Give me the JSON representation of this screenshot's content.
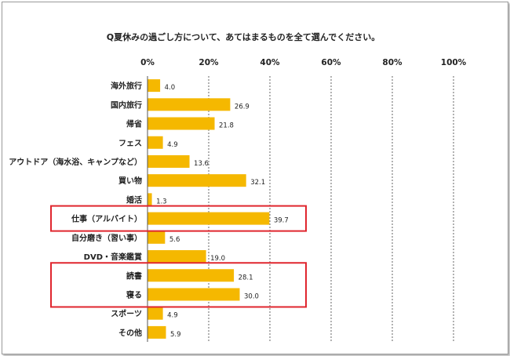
{
  "chart_data": {
    "type": "bar",
    "orientation": "horizontal",
    "title": "Q夏休みの過ごし方について、あてはまるものを全て選んでください。",
    "categories": [
      "海外旅行",
      "国内旅行",
      "帰省",
      "フェス",
      "アウトドア（海水浴、キャンプなど）",
      "買い物",
      "婚活",
      "仕事（アルバイト）",
      "自分磨き（習い事）",
      "DVD・音楽鑑賞",
      "読書",
      "寝る",
      "スポーツ",
      "その他"
    ],
    "values": [
      4.0,
      26.9,
      21.8,
      4.9,
      13.6,
      32.1,
      1.3,
      39.7,
      5.6,
      19.0,
      28.1,
      30.0,
      4.9,
      5.9
    ],
    "value_labels": [
      "4.0",
      "26.9",
      "21.8",
      "4.9",
      "13.6",
      "32.1",
      "1.3",
      "39.7",
      "5.6",
      "19.0",
      "28.1",
      "30.0",
      "4.9",
      "5.9"
    ],
    "xlim": [
      0,
      100
    ],
    "xticks": [
      "0%",
      "20%",
      "40%",
      "60%",
      "80%",
      "100%"
    ],
    "grid": "vertical dashed",
    "bar_color": "#f5b800",
    "highlight_color": "#e0262e",
    "highlights": [
      [
        "仕事（アルバイト）"
      ],
      [
        "読書",
        "寝る"
      ]
    ]
  }
}
